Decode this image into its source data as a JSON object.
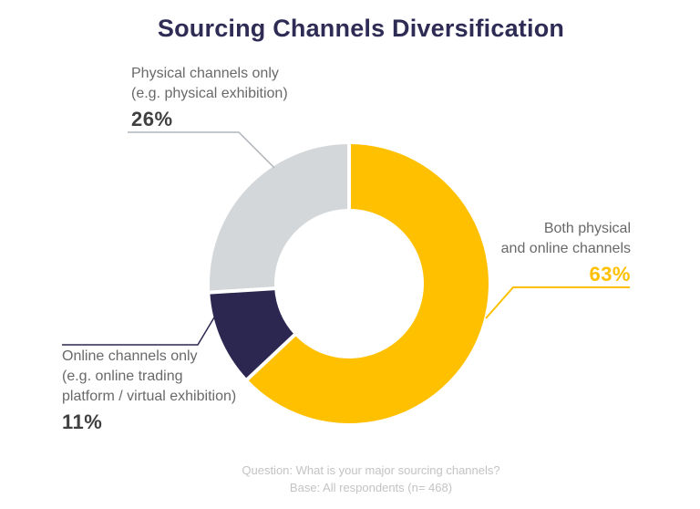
{
  "title": "Sourcing Channels Diversification",
  "chart_data": {
    "type": "pie",
    "subtype": "donut",
    "title": "Sourcing Channels Diversification",
    "start_angle_deg": 0,
    "direction": "clockwise",
    "unit": "%",
    "segments": [
      {
        "label": "Both physical and online channels",
        "value": 63,
        "color": "#FFC000"
      },
      {
        "label": "Online channels only (e.g. online trading platform / virtual exhibition)",
        "value": 11,
        "color": "#2B2750"
      },
      {
        "label": "Physical channels only (e.g. physical exhibition)",
        "value": 26,
        "color": "#D3D7DA"
      }
    ],
    "source_note": "Question: What is your major sourcing channels? Base: All respondents (n= 468)"
  },
  "labels": {
    "physical": {
      "line1": "Physical channels only",
      "line2": "(e.g. physical exhibition)",
      "value": "26%"
    },
    "both": {
      "line1": "Both physical",
      "line2": "and online channels",
      "value": "63%"
    },
    "online": {
      "line1": "Online channels only",
      "line2": "(e.g. online trading",
      "line3": "platform / virtual exhibition)",
      "value": "11%"
    }
  },
  "footer": {
    "line1": "Question: What is your major sourcing channels?",
    "line2": "Base: All respondents (n= 468)"
  },
  "colors": {
    "title_text": "#2E2C55",
    "label_text": "#696969",
    "percent_text": "#404040",
    "accent_yellow": "#FFC000",
    "navy": "#2B2750",
    "light_gray": "#D3D7DA",
    "footer_text": "#C3C3C3",
    "leader_gray": "#AEB6BC"
  }
}
